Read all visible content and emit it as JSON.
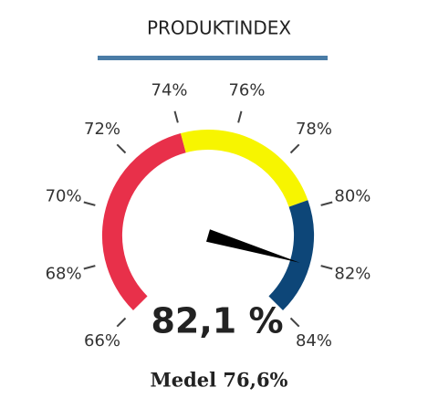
{
  "chart_data": {
    "type": "gauge",
    "title": "PRODUKTINDEX",
    "value": 82.1,
    "value_label": "82,1 %",
    "footer": "Medel 76,6%",
    "xlim": [
      66,
      84
    ],
    "xticks": [
      {
        "value": 66,
        "label": "66%"
      },
      {
        "value": 68,
        "label": "68%"
      },
      {
        "value": 70,
        "label": "70%"
      },
      {
        "value": 72,
        "label": "72%"
      },
      {
        "value": 74,
        "label": "74%"
      },
      {
        "value": 76,
        "label": "76%"
      },
      {
        "value": 78,
        "label": "78%"
      },
      {
        "value": 80,
        "label": "80%"
      },
      {
        "value": 82,
        "label": "82%"
      },
      {
        "value": 84,
        "label": "84%"
      }
    ],
    "bands": [
      {
        "from": 66,
        "to": 74,
        "color": "#e8304a"
      },
      {
        "from": 74,
        "to": 79.7,
        "color": "#f7f500"
      },
      {
        "from": 79.7,
        "to": 84,
        "color": "#0d4678"
      }
    ],
    "needle_color": "#000000",
    "title_rule_color": "#4a7ca6"
  }
}
